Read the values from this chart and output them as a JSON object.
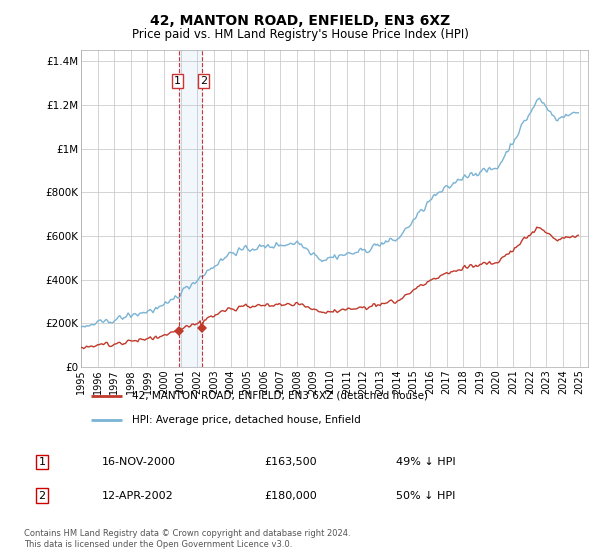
{
  "title": "42, MANTON ROAD, ENFIELD, EN3 6XZ",
  "subtitle": "Price paid vs. HM Land Registry's House Price Index (HPI)",
  "ylabel_ticks": [
    "£0",
    "£200K",
    "£400K",
    "£600K",
    "£800K",
    "£1M",
    "£1.2M",
    "£1.4M"
  ],
  "ytick_values": [
    0,
    200000,
    400000,
    600000,
    800000,
    1000000,
    1200000,
    1400000
  ],
  "ylim": [
    0,
    1450000
  ],
  "xlim_start": 1995.0,
  "xlim_end": 2025.5,
  "hpi_color": "#7ab3d4",
  "price_color": "#c0392b",
  "vline_color": "#cc3333",
  "sale1_date": 2000.88,
  "sale2_date": 2002.28,
  "sale1_price": 163500,
  "sale2_price": 180000,
  "legend_label1": "42, MANTON ROAD, ENFIELD, EN3 6XZ (detached house)",
  "legend_label2": "HPI: Average price, detached house, Enfield",
  "table_row1_num": "1",
  "table_row1_date": "16-NOV-2000",
  "table_row1_price": "£163,500",
  "table_row1_hpi": "49% ↓ HPI",
  "table_row2_num": "2",
  "table_row2_date": "12-APR-2002",
  "table_row2_price": "£180,000",
  "table_row2_hpi": "50% ↓ HPI",
  "footer": "Contains HM Land Registry data © Crown copyright and database right 2024.\nThis data is licensed under the Open Government Licence v3.0.",
  "background_color": "#ffffff",
  "grid_color": "#cccccc"
}
